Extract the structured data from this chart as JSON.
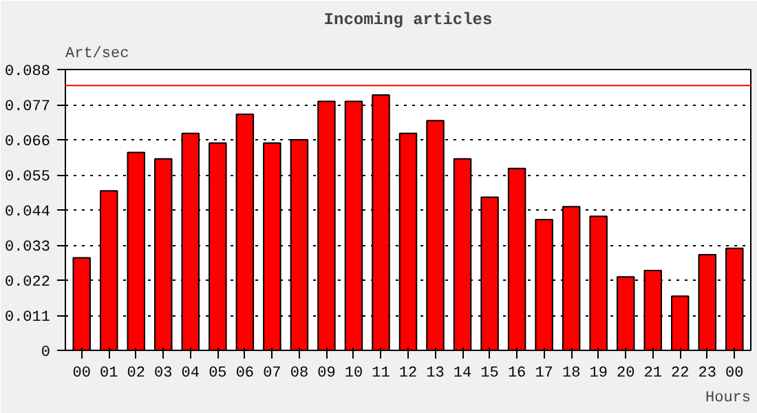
{
  "chart_data": {
    "type": "bar",
    "title": "Incoming articles",
    "ylabel": "Art/sec",
    "xlabel": "Hours",
    "categories": [
      "00",
      "01",
      "02",
      "03",
      "04",
      "05",
      "06",
      "07",
      "08",
      "09",
      "10",
      "11",
      "12",
      "13",
      "14",
      "15",
      "16",
      "17",
      "18",
      "19",
      "20",
      "21",
      "22",
      "23",
      "00"
    ],
    "values": [
      0.029,
      0.05,
      0.062,
      0.06,
      0.068,
      0.065,
      0.074,
      0.065,
      0.066,
      0.078,
      0.078,
      0.08,
      0.068,
      0.072,
      0.06,
      0.048,
      0.057,
      0.041,
      0.045,
      0.042,
      0.023,
      0.025,
      0.017,
      0.03,
      0.032
    ],
    "color": "#ff0000",
    "ylim": [
      0,
      0.088
    ],
    "yticks": [
      0,
      0.011,
      0.022,
      0.033,
      0.044,
      0.055,
      0.066,
      0.077,
      0.088
    ],
    "grid": "y",
    "line_style": "dotted",
    "ref_lines": [
      {
        "axis": "y",
        "value": 0.083,
        "label": null,
        "color": "#ff0000",
        "line_style": "solid"
      }
    ]
  }
}
